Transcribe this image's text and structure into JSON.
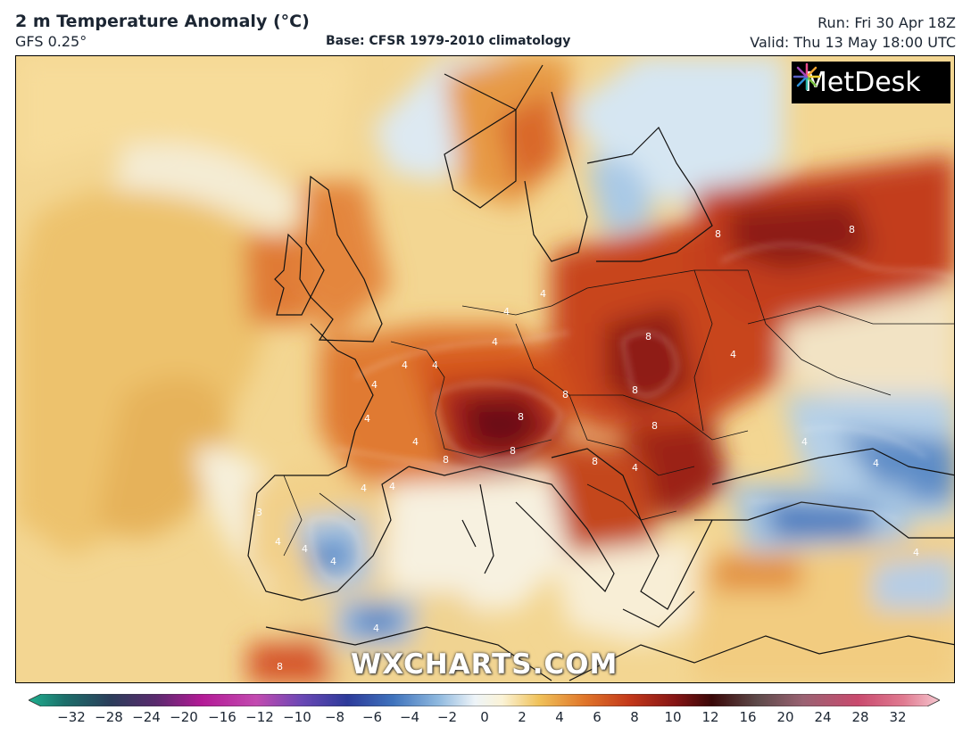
{
  "header": {
    "title": "2 m Temperature Anomaly (°C)",
    "model": "GFS 0.25°",
    "base": "Base: CFSR 1979-2010 climatology",
    "run": "Run: Fri 30 Apr 18Z",
    "valid": "Valid: Thu 13 May 18:00 UTC"
  },
  "logo": {
    "text": "MetDesk"
  },
  "watermark": "WXCHARTS.COM",
  "colorbar": {
    "ticks": [
      "−32",
      "−28",
      "−24",
      "−20",
      "−16",
      "−12",
      "−10",
      "−8",
      "−6",
      "−4",
      "−2",
      "0",
      "2",
      "4",
      "6",
      "8",
      "10",
      "12",
      "16",
      "20",
      "24",
      "28",
      "32"
    ]
  },
  "contour_labels": [
    "8",
    "8",
    "8",
    "8",
    "8",
    "8",
    "8",
    "8",
    "8",
    "8",
    "8",
    "4",
    "4",
    "4",
    "4",
    "4",
    "4",
    "4",
    "4",
    "4",
    "4",
    "4",
    "4",
    "4",
    "3",
    "4",
    "4",
    "4",
    "4",
    "4",
    "4"
  ]
}
